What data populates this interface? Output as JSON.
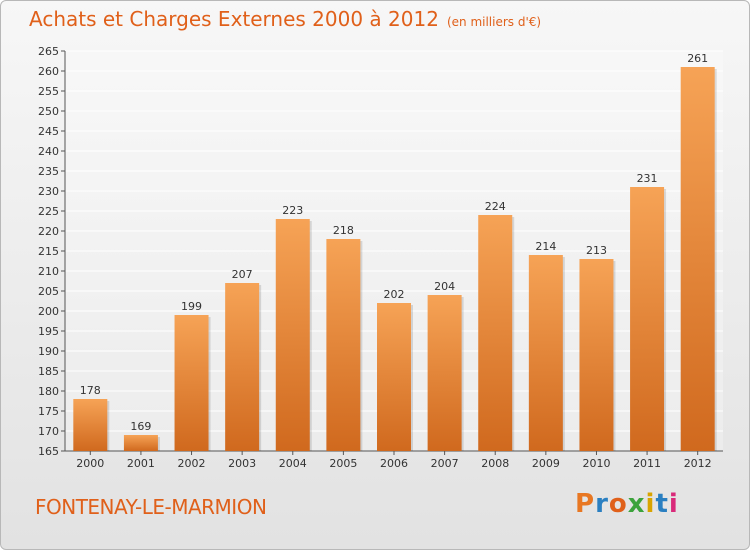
{
  "page": {
    "title": "Achats et Charges Externes 2000 à 2012",
    "subtitle": "(en milliers d'€)",
    "commune": "FONTENAY-LE-MARMION",
    "logo_text": "Proxiti",
    "logo_colors": [
      "#e87722",
      "#2a7fc1",
      "#e0601a",
      "#3ca33c",
      "#d9a400",
      "#2a7fc1",
      "#d92a7a"
    ]
  },
  "chart_data": {
    "type": "bar",
    "title": "Achats et Charges Externes 2000 à 2012",
    "subtitle": "(en milliers d'€)",
    "categories": [
      "2000",
      "2001",
      "2002",
      "2003",
      "2004",
      "2005",
      "2006",
      "2007",
      "2008",
      "2009",
      "2010",
      "2011",
      "2012"
    ],
    "values": [
      178,
      169,
      199,
      207,
      223,
      218,
      202,
      204,
      224,
      214,
      213,
      231,
      261
    ],
    "ylim": [
      165,
      265
    ],
    "yticks": [
      165,
      170,
      175,
      180,
      185,
      190,
      195,
      200,
      205,
      210,
      215,
      220,
      225,
      230,
      235,
      240,
      245,
      250,
      255,
      260,
      265
    ],
    "grid": true,
    "bar_color_top": "#f6a356",
    "bar_color_bottom": "#d0691e"
  }
}
